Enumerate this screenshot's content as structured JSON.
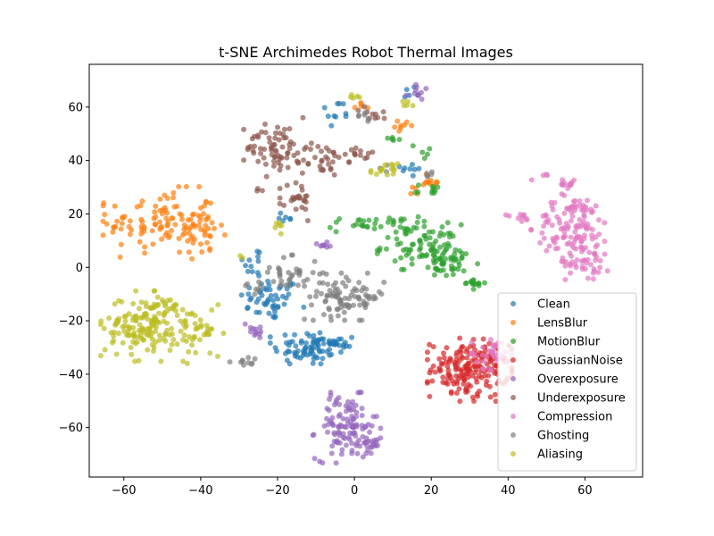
{
  "chart_data": {
    "type": "scatter",
    "title": "t-SNE Archimedes Robot Thermal Images",
    "xlabel": "",
    "ylabel": "",
    "xlim": [
      -69,
      75
    ],
    "ylim": [
      -78.5,
      76
    ],
    "xticks": [
      -60,
      -40,
      -20,
      0,
      20,
      40,
      60
    ],
    "yticks": [
      -60,
      -40,
      -20,
      0,
      20,
      40,
      60
    ],
    "grid": false,
    "legend_position": "bottom-right",
    "series": [
      {
        "name": "Clean",
        "color": "#1f77b4",
        "clusters": [
          {
            "cx": -22,
            "cy": -12,
            "sx": 4,
            "sy": 4,
            "n": 50
          },
          {
            "cx": -12,
            "cy": -30,
            "sx": 4.5,
            "sy": 3.5,
            "n": 70
          },
          {
            "cx": -5,
            "cy": -29,
            "sx": 3,
            "sy": 2,
            "n": 20
          },
          {
            "cx": -26,
            "cy": 2,
            "sx": 1.5,
            "sy": 3,
            "n": 12
          },
          {
            "cx": -18,
            "cy": 19,
            "sx": 1.5,
            "sy": 1.5,
            "n": 6
          },
          {
            "cx": -5,
            "cy": 57,
            "sx": 2,
            "sy": 3,
            "n": 10
          },
          {
            "cx": 15,
            "cy": 37,
            "sx": 2,
            "sy": 2,
            "n": 8
          },
          {
            "cx": 15,
            "cy": 66,
            "sx": 1.2,
            "sy": 1,
            "n": 5
          }
        ]
      },
      {
        "name": "LensBlur",
        "color": "#ff7f0e",
        "clusters": [
          {
            "cx": -50,
            "cy": 17,
            "sx": 7,
            "sy": 6,
            "n": 110
          },
          {
            "cx": -40,
            "cy": 12,
            "sx": 3,
            "sy": 4,
            "n": 25
          },
          {
            "cx": 20,
            "cy": 32,
            "sx": 1.5,
            "sy": 1.5,
            "n": 12
          },
          {
            "cx": 13,
            "cy": 53,
            "sx": 1.2,
            "sy": 1,
            "n": 8
          },
          {
            "cx": 2,
            "cy": 61,
            "sx": 1,
            "sy": 1,
            "n": 5
          },
          {
            "cx": 16,
            "cy": 29,
            "sx": 1,
            "sy": 1,
            "n": 4
          }
        ]
      },
      {
        "name": "MotionBlur",
        "color": "#2ca02c",
        "clusters": [
          {
            "cx": 5,
            "cy": 16,
            "sx": 6,
            "sy": 1.5,
            "n": 35
          },
          {
            "cx": 17,
            "cy": 8,
            "sx": 5,
            "sy": 4,
            "n": 70
          },
          {
            "cx": 25,
            "cy": 2,
            "sx": 4,
            "sy": 3,
            "n": 50
          },
          {
            "cx": 31,
            "cy": -6,
            "sx": 1.5,
            "sy": 1,
            "n": 15
          },
          {
            "cx": 20,
            "cy": 29,
            "sx": 2,
            "sy": 1,
            "n": 10
          },
          {
            "cx": 10,
            "cy": 49,
            "sx": 1,
            "sy": 1,
            "n": 5
          },
          {
            "cx": 18,
            "cy": 43,
            "sx": 1.5,
            "sy": 1.5,
            "n": 5
          }
        ]
      },
      {
        "name": "GaussianNoise",
        "color": "#d62728",
        "clusters": [
          {
            "cx": 30,
            "cy": -38,
            "sx": 5,
            "sy": 5.5,
            "n": 180
          }
        ]
      },
      {
        "name": "Overexposure",
        "color": "#9467bd",
        "clusters": [
          {
            "cx": -2,
            "cy": -60,
            "sx": 4,
            "sy": 6,
            "n": 110
          },
          {
            "cx": 3,
            "cy": -66,
            "sx": 2.5,
            "sy": 2,
            "n": 20
          },
          {
            "cx": -26,
            "cy": -23,
            "sx": 1.5,
            "sy": 1.5,
            "n": 12
          },
          {
            "cx": -8,
            "cy": 8,
            "sx": 1,
            "sy": 0.8,
            "n": 8
          },
          {
            "cx": 16,
            "cy": 66,
            "sx": 1.2,
            "sy": 1.5,
            "n": 10
          }
        ]
      },
      {
        "name": "Underexposure",
        "color": "#8c564b",
        "clusters": [
          {
            "cx": -20,
            "cy": 45,
            "sx": 4,
            "sy": 5,
            "n": 70
          },
          {
            "cx": -8,
            "cy": 40,
            "sx": 3,
            "sy": 3,
            "n": 30
          },
          {
            "cx": -15,
            "cy": 25,
            "sx": 2,
            "sy": 4,
            "n": 25
          },
          {
            "cx": 2,
            "cy": 43,
            "sx": 2,
            "sy": 1.2,
            "n": 12
          },
          {
            "cx": 5,
            "cy": 57,
            "sx": 2,
            "sy": 1.5,
            "n": 10
          },
          {
            "cx": -25,
            "cy": 29,
            "sx": 0.8,
            "sy": 0.6,
            "n": 3
          }
        ]
      },
      {
        "name": "Compression",
        "color": "#e377c2",
        "clusters": [
          {
            "cx": 57,
            "cy": 15,
            "sx": 5,
            "sy": 6,
            "n": 120
          },
          {
            "cx": 61,
            "cy": 2,
            "sx": 3,
            "sy": 3,
            "n": 35
          },
          {
            "cx": 55,
            "cy": 31,
            "sx": 1.5,
            "sy": 0.8,
            "n": 12
          },
          {
            "cx": 43,
            "cy": 19,
            "sx": 2,
            "sy": 0.8,
            "n": 10
          },
          {
            "cx": 36,
            "cy": -32,
            "sx": 3,
            "sy": 3,
            "n": 40
          },
          {
            "cx": 48,
            "cy": 34,
            "sx": 1,
            "sy": 1,
            "n": 4
          }
        ]
      },
      {
        "name": "Ghosting",
        "color": "#7f7f7f",
        "clusters": [
          {
            "cx": -2,
            "cy": -11,
            "sx": 5,
            "sy": 4,
            "n": 90
          },
          {
            "cx": -17,
            "cy": -2,
            "sx": 4,
            "sy": 3,
            "n": 35
          },
          {
            "cx": -28,
            "cy": -36,
            "sx": 2,
            "sy": 1,
            "n": 10
          },
          {
            "cx": -26,
            "cy": -8,
            "sx": 1.5,
            "sy": 1,
            "n": 6
          },
          {
            "cx": 3,
            "cy": 56,
            "sx": 1.5,
            "sy": 1.5,
            "n": 6
          },
          {
            "cx": 19,
            "cy": 36,
            "sx": 1,
            "sy": 1,
            "n": 5
          },
          {
            "cx": 8,
            "cy": 37,
            "sx": 1,
            "sy": 0.8,
            "n": 4
          }
        ]
      },
      {
        "name": "Aliasing",
        "color": "#bcbd22",
        "clusters": [
          {
            "cx": -55,
            "cy": -22,
            "sx": 5,
            "sy": 6,
            "n": 150
          },
          {
            "cx": -40,
            "cy": -25,
            "sx": 3,
            "sy": 5,
            "n": 40
          },
          {
            "cx": -49,
            "cy": -15,
            "sx": 3,
            "sy": 2,
            "n": 20
          },
          {
            "cx": 8,
            "cy": 36,
            "sx": 2,
            "sy": 1.5,
            "n": 15
          },
          {
            "cx": 14,
            "cy": 61,
            "sx": 1,
            "sy": 0.8,
            "n": 5
          },
          {
            "cx": 0,
            "cy": 64,
            "sx": 1,
            "sy": 0.8,
            "n": 5
          },
          {
            "cx": -20,
            "cy": 17,
            "sx": 1.5,
            "sy": 2,
            "n": 6
          },
          {
            "cx": -29,
            "cy": 4,
            "sx": 0.5,
            "sy": 0.5,
            "n": 2
          }
        ]
      }
    ]
  }
}
